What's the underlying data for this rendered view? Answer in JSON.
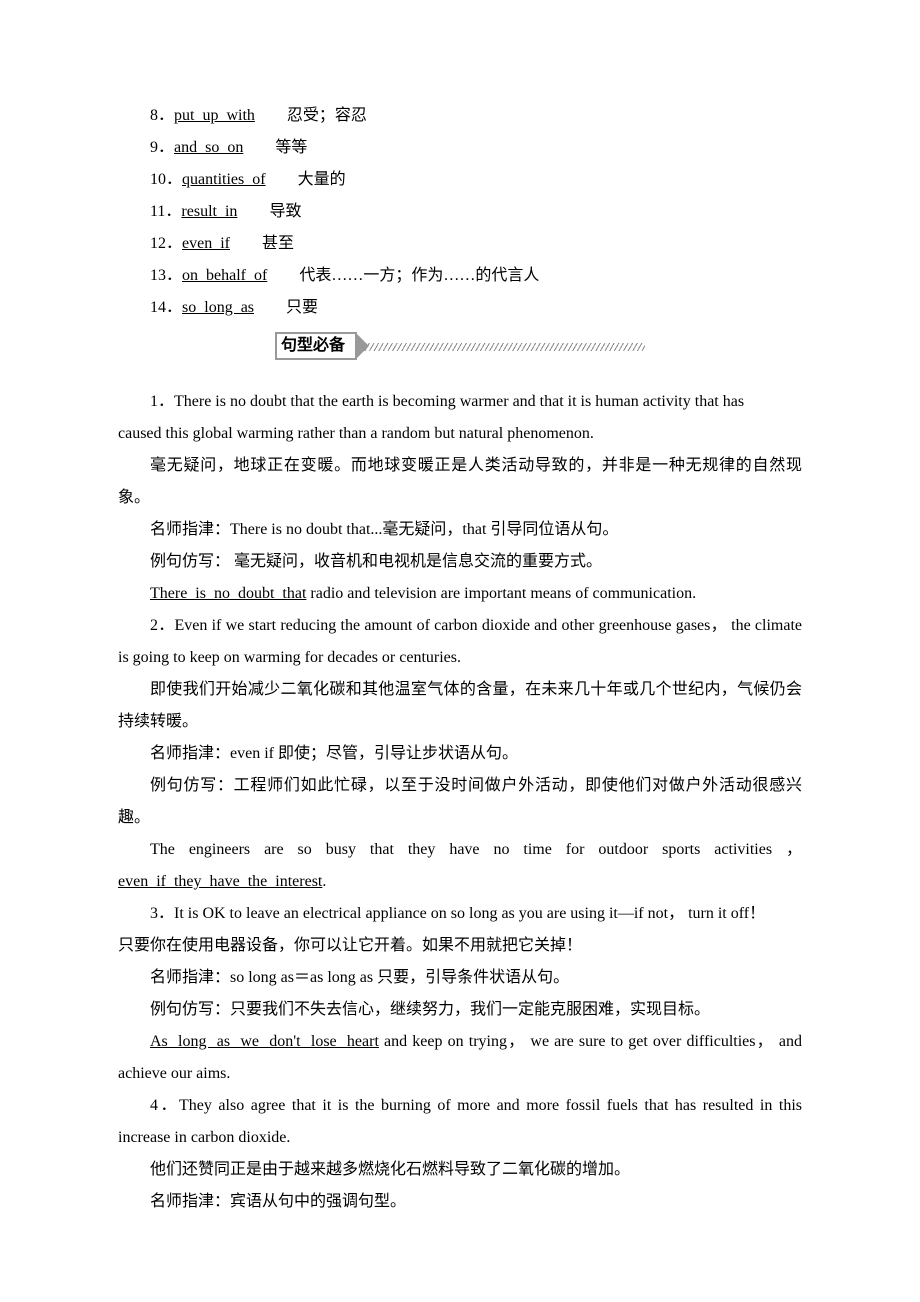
{
  "colors": {
    "text": "#000000",
    "background": "#ffffff",
    "border_gray": "#999999",
    "hatch_gray": "#888888"
  },
  "typography": {
    "body_font_pt": 12,
    "body_font_family": "Times New Roman / SimSun",
    "line_height": 2.0
  },
  "vocab_items": [
    {
      "num": "8",
      "blank": "put  up  with",
      "cn": "忍受；容忍"
    },
    {
      "num": "9",
      "blank": "and  so  on",
      "cn": "等等"
    },
    {
      "num": "10",
      "blank": "quantities  of",
      "cn": "大量的"
    },
    {
      "num": "11",
      "blank": "result  in",
      "cn": "导致"
    },
    {
      "num": "12",
      "blank": "even  if",
      "cn": "甚至"
    },
    {
      "num": "13",
      "blank": "on  behalf  of",
      "cn": "代表……一方；作为……的代言人"
    },
    {
      "num": "14",
      "blank": "so  long  as",
      "cn": "只要"
    }
  ],
  "section_header": "句型必备",
  "blocks": {
    "b1": {
      "en_a": "1．There is no doubt that the earth is becoming warmer and that it is human activity that has",
      "en_b": "caused this global warming rather than a random but natural phenomenon.",
      "cn": "毫无疑问，地球正在变暖。而地球变暖正是人类活动导致的，并非是一种无规律的自然现象。",
      "tip": "名师指津：There is no doubt that...毫无疑问，that 引导同位语从句。",
      "ex": "例句仿写： 毫无疑问，收音机和电视机是信息交流的重要方式。",
      "ans_u": "There  is  no  doubt  that",
      "ans_rest": " radio and television are important means of communication."
    },
    "b2": {
      "en": "2．Even if we start reducing the amount of carbon dioxide and other greenhouse gases， the climate is going to keep on warming for decades or centuries.",
      "cn": "即使我们开始减少二氧化碳和其他温室气体的含量，在未来几十年或几个世纪内，气候仍会持续转暖。",
      "tip": "名师指津：even if 即使；尽管，引导让步状语从句。",
      "ex": "例句仿写：工程师们如此忙碌，以至于没时间做户外活动，即使他们对做户外活动很感兴趣。",
      "ans_a": "The  engineers  are  so  busy  that  they  have  no  time  for  outdoor  sports  activities ，",
      "ans_u": "even  if  they  have  the  interest",
      "ans_end": "."
    },
    "b3": {
      "en": "3．It is OK to leave an electrical appliance on so long as you are using it—if not， turn it off！",
      "cn": "只要你在使用电器设备，你可以让它开着。如果不用就把它关掉！",
      "tip": "名师指津：so long as＝as long as 只要，引导条件状语从句。",
      "ex": "例句仿写：只要我们不失去信心，继续努力，我们一定能克服困难，实现目标。",
      "ans_u": "As  long  as  we  don't  lose  heart",
      "ans_rest": " and keep on trying， we are sure to get over difficulties， and achieve our aims."
    },
    "b4": {
      "en": "4．They also agree that it is the burning of more and more fossil fuels that has resulted in this increase in carbon dioxide.",
      "cn": "他们还赞同正是由于越来越多燃烧化石燃料导致了二氧化碳的增加。",
      "tip": "名师指津：宾语从句中的强调句型。"
    }
  }
}
